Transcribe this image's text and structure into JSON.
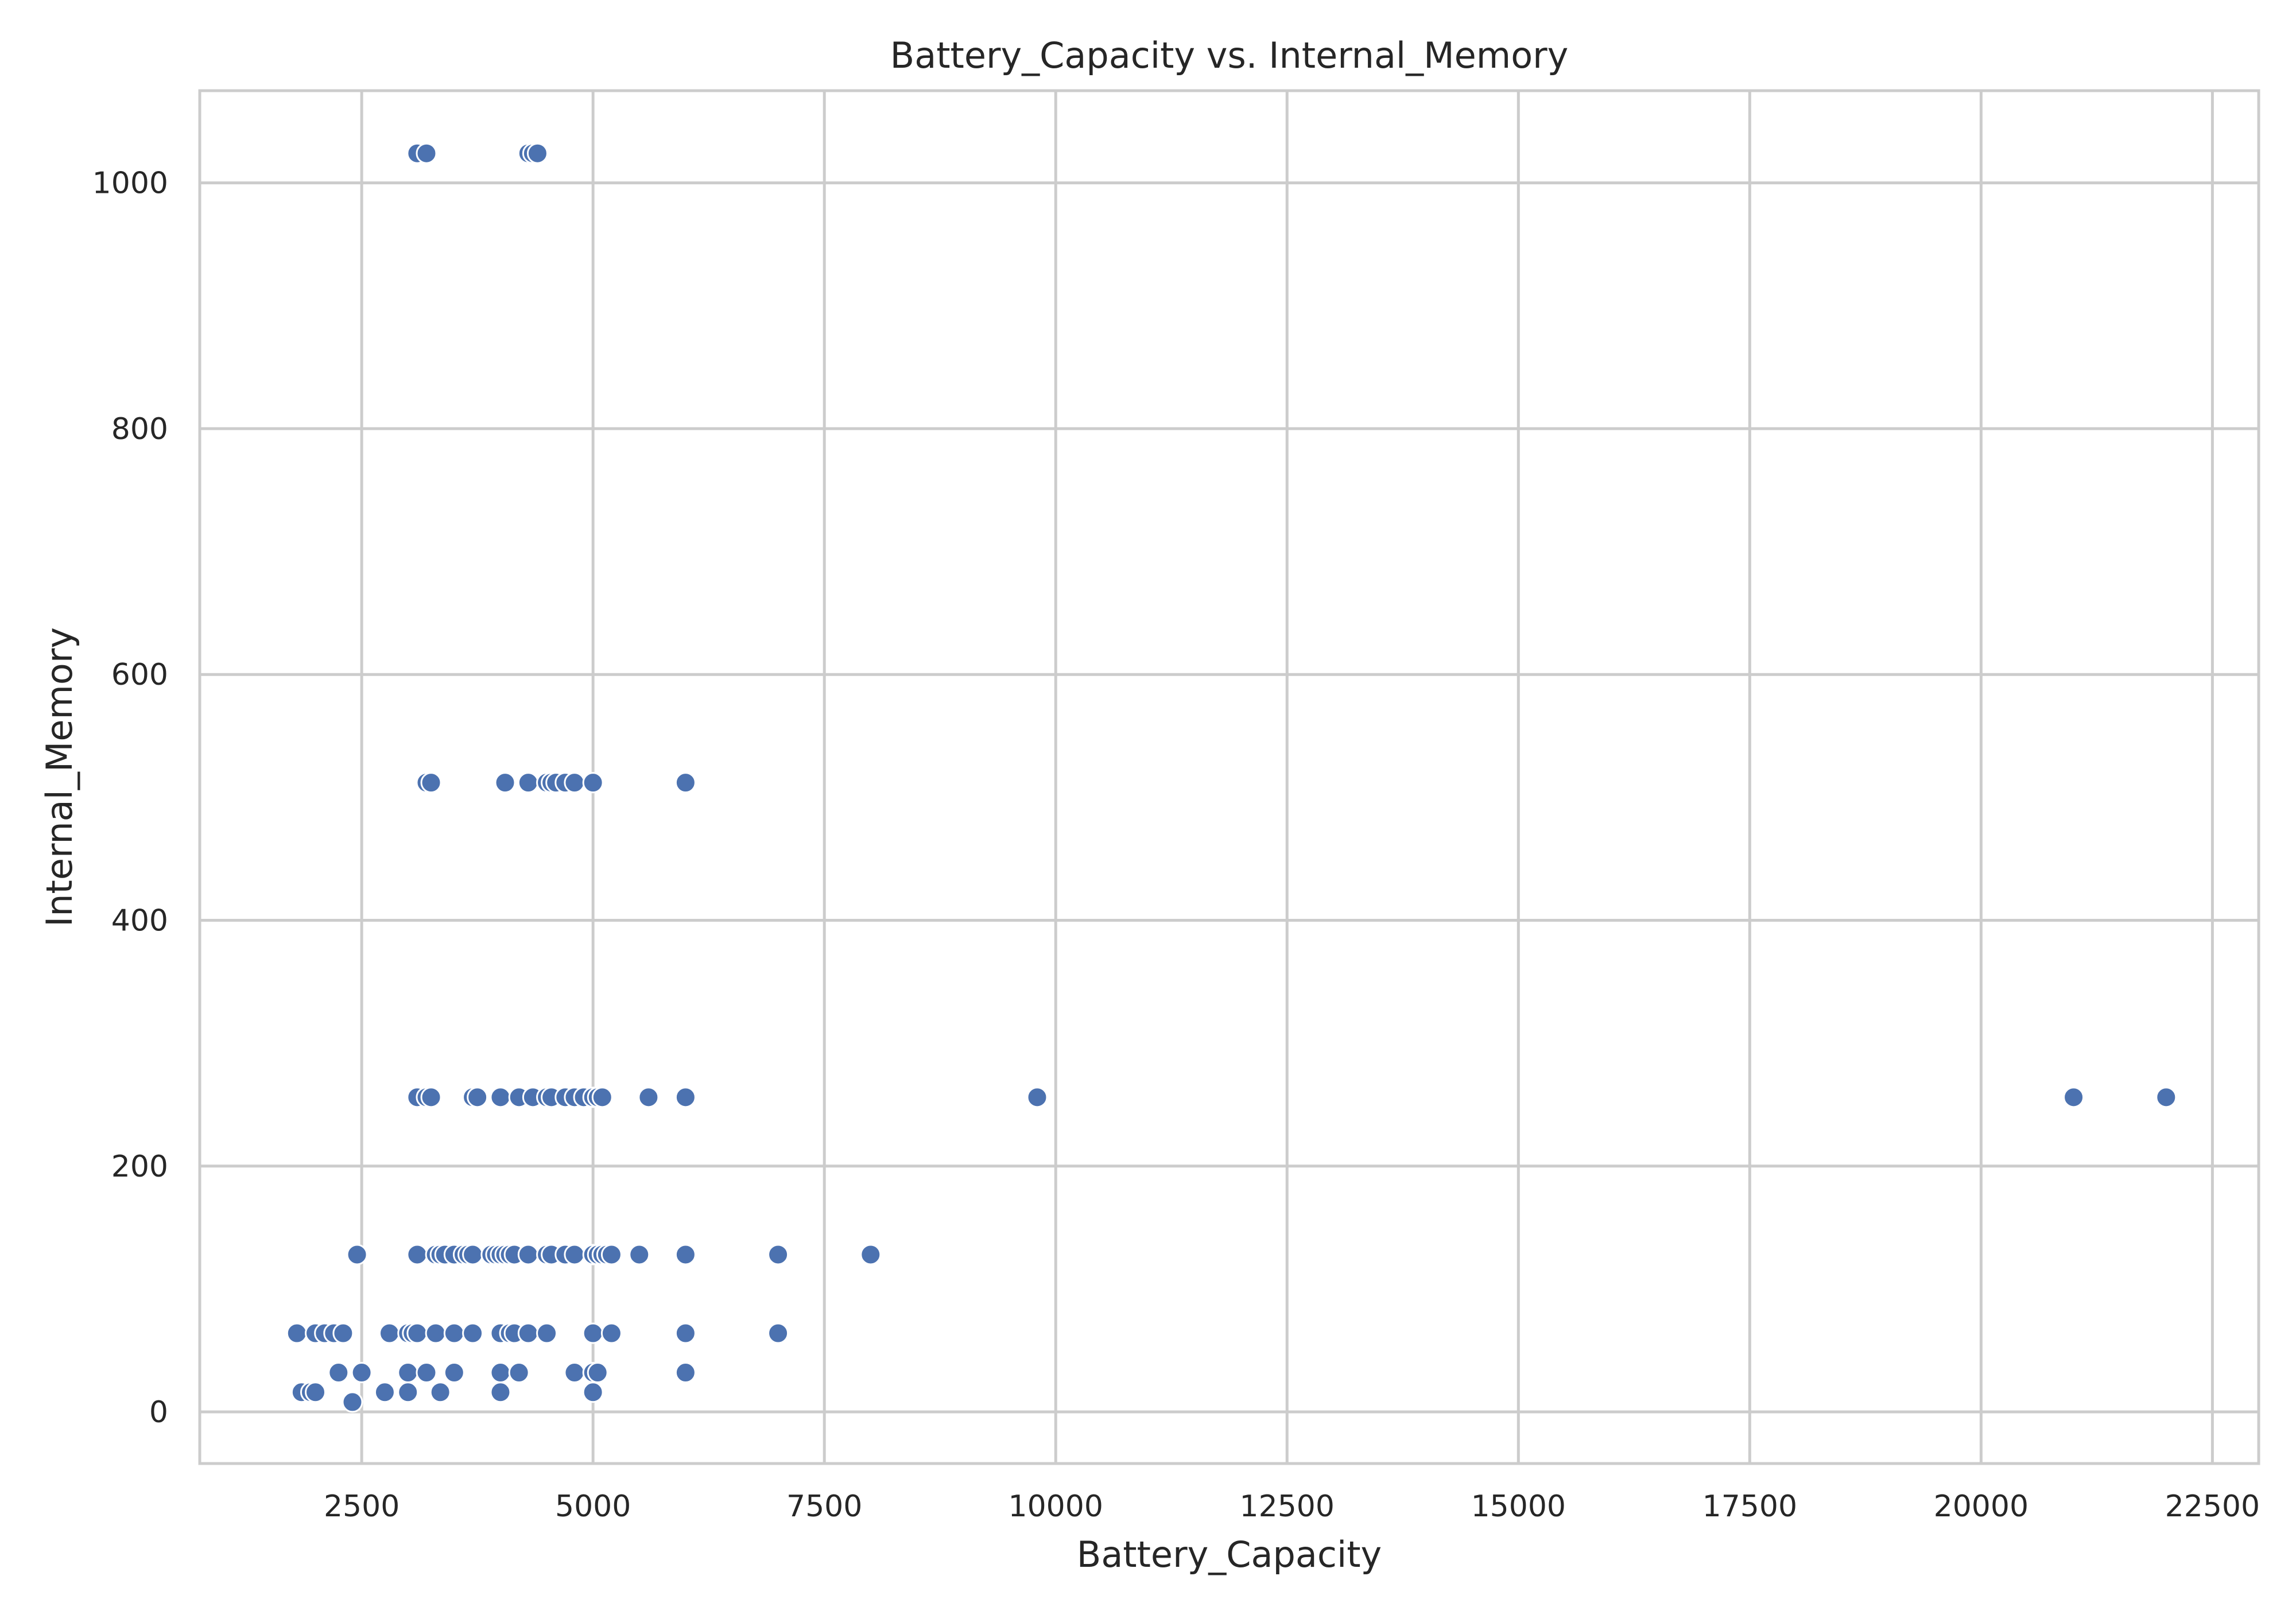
{
  "chart_data": {
    "type": "scatter",
    "title": "Battery_Capacity vs. Internal_Memory",
    "xlabel": "Battery_Capacity",
    "ylabel": "Internal_Memory",
    "xlim": [
      750,
      23000
    ],
    "ylim": [
      -42,
      1075
    ],
    "xticks": [
      2500,
      5000,
      7500,
      10000,
      12500,
      15000,
      17500,
      20000,
      22500
    ],
    "yticks": [
      0,
      200,
      400,
      600,
      800,
      1000
    ],
    "grid": true,
    "marker_color": "#4c72b0",
    "grid_color": "#cccccc",
    "points": [
      [
        3100,
        1024
      ],
      [
        3200,
        1024
      ],
      [
        4300,
        1024
      ],
      [
        4350,
        1024
      ],
      [
        4400,
        1024
      ],
      [
        3200,
        512
      ],
      [
        3250,
        512
      ],
      [
        4050,
        512
      ],
      [
        4300,
        512
      ],
      [
        4500,
        512
      ],
      [
        4550,
        512
      ],
      [
        4600,
        512
      ],
      [
        4700,
        512
      ],
      [
        4800,
        512
      ],
      [
        5000,
        512
      ],
      [
        6000,
        512
      ],
      [
        3100,
        256
      ],
      [
        3200,
        256
      ],
      [
        3250,
        256
      ],
      [
        3700,
        256
      ],
      [
        3750,
        256
      ],
      [
        4000,
        256
      ],
      [
        4200,
        256
      ],
      [
        4350,
        256
      ],
      [
        4500,
        256
      ],
      [
        4550,
        256
      ],
      [
        4700,
        256
      ],
      [
        4800,
        256
      ],
      [
        4900,
        256
      ],
      [
        5000,
        256
      ],
      [
        5050,
        256
      ],
      [
        5100,
        256
      ],
      [
        5600,
        256
      ],
      [
        6000,
        256
      ],
      [
        9800,
        256
      ],
      [
        21000,
        256
      ],
      [
        22000,
        256
      ],
      [
        2450,
        128
      ],
      [
        3100,
        128
      ],
      [
        3300,
        128
      ],
      [
        3350,
        128
      ],
      [
        3400,
        128
      ],
      [
        3500,
        128
      ],
      [
        3600,
        128
      ],
      [
        3650,
        128
      ],
      [
        3700,
        128
      ],
      [
        3900,
        128
      ],
      [
        3950,
        128
      ],
      [
        4000,
        128
      ],
      [
        4050,
        128
      ],
      [
        4100,
        128
      ],
      [
        4150,
        128
      ],
      [
        4300,
        128
      ],
      [
        4500,
        128
      ],
      [
        4550,
        128
      ],
      [
        4700,
        128
      ],
      [
        4800,
        128
      ],
      [
        5000,
        128
      ],
      [
        5050,
        128
      ],
      [
        5100,
        128
      ],
      [
        5150,
        128
      ],
      [
        5200,
        128
      ],
      [
        5500,
        128
      ],
      [
        6000,
        128
      ],
      [
        7000,
        128
      ],
      [
        8000,
        128
      ],
      [
        1800,
        64
      ],
      [
        2000,
        64
      ],
      [
        2100,
        64
      ],
      [
        2200,
        64
      ],
      [
        2300,
        64
      ],
      [
        2800,
        64
      ],
      [
        3000,
        64
      ],
      [
        3050,
        64
      ],
      [
        3100,
        64
      ],
      [
        3300,
        64
      ],
      [
        3500,
        64
      ],
      [
        3700,
        64
      ],
      [
        4000,
        64
      ],
      [
        4100,
        64
      ],
      [
        4150,
        64
      ],
      [
        4300,
        64
      ],
      [
        4500,
        64
      ],
      [
        5000,
        64
      ],
      [
        5200,
        64
      ],
      [
        6000,
        64
      ],
      [
        7000,
        64
      ],
      [
        2250,
        32
      ],
      [
        2500,
        32
      ],
      [
        3000,
        32
      ],
      [
        3200,
        32
      ],
      [
        3500,
        32
      ],
      [
        4000,
        32
      ],
      [
        4200,
        32
      ],
      [
        4800,
        32
      ],
      [
        5000,
        32
      ],
      [
        5050,
        32
      ],
      [
        6000,
        32
      ],
      [
        1850,
        16
      ],
      [
        1950,
        16
      ],
      [
        2000,
        16
      ],
      [
        2750,
        16
      ],
      [
        3000,
        16
      ],
      [
        3350,
        16
      ],
      [
        4000,
        16
      ],
      [
        5000,
        16
      ],
      [
        2400,
        8
      ]
    ]
  }
}
